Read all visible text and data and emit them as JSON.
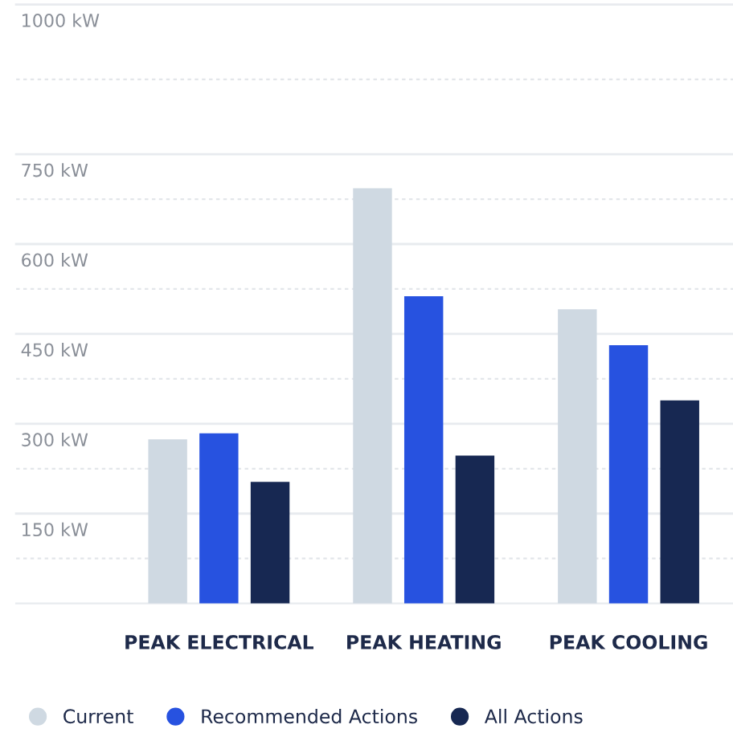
{
  "chart_data": {
    "type": "bar",
    "categories": [
      "PEAK ELECTRICAL",
      "PEAK HEATING",
      "PEAK COOLING"
    ],
    "series": [
      {
        "name": "Current",
        "color": "#cfd9e2",
        "values": [
          274,
          693,
          491
        ]
      },
      {
        "name": "Recommended Actions",
        "color": "#2752e0",
        "values": [
          284,
          513,
          431
        ]
      },
      {
        "name": "All Actions",
        "color": "#172852",
        "values": [
          203,
          247,
          339
        ]
      }
    ],
    "ylim": [
      0,
      1000
    ],
    "yticks": [
      {
        "value": 150,
        "label": "150 kW"
      },
      {
        "value": 300,
        "label": "300 kW"
      },
      {
        "value": 450,
        "label": "450 kW"
      },
      {
        "value": 600,
        "label": "600 kW"
      },
      {
        "value": 750,
        "label": "750 kW"
      },
      {
        "value": 1000,
        "label": "1000 kW"
      }
    ],
    "grid": "y",
    "legend": "bottom left",
    "marker": "circle"
  }
}
